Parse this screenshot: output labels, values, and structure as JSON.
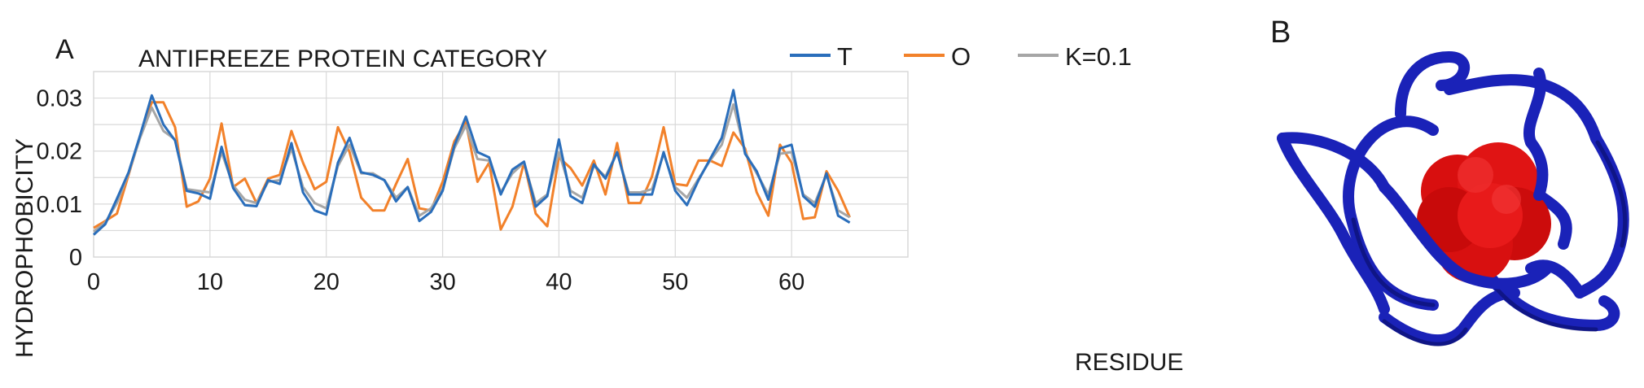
{
  "panel_a": {
    "label": "A",
    "chart_data": {
      "type": "line",
      "title": "ANTIFREEZE PROTEIN CATEGORY",
      "xlabel": "RESIDUE",
      "ylabel": "HYDROPHOBICITY",
      "xlim": [
        0,
        70
      ],
      "ylim": [
        0,
        0.035
      ],
      "xticks": [
        0,
        10,
        20,
        30,
        40,
        50,
        60
      ],
      "yticks": [
        0,
        0.01,
        0.02,
        0.03
      ],
      "ytick_labels": [
        "0",
        "0.01",
        "0.02",
        "0.03"
      ],
      "grid": true,
      "legend_position": "top-right",
      "x": [
        0,
        1,
        2,
        3,
        4,
        5,
        6,
        7,
        8,
        9,
        10,
        11,
        12,
        13,
        14,
        15,
        16,
        17,
        18,
        19,
        20,
        21,
        22,
        23,
        24,
        25,
        26,
        27,
        28,
        29,
        30,
        31,
        32,
        33,
        34,
        35,
        36,
        37,
        38,
        39,
        40,
        41,
        42,
        43,
        44,
        45,
        46,
        47,
        48,
        49,
        50,
        51,
        52,
        53,
        54,
        55,
        56,
        57,
        58,
        59,
        60,
        61,
        62,
        63,
        64,
        65
      ],
      "series": [
        {
          "name": "T",
          "color": "#2a6ebb",
          "values": [
            0.0042,
            0.0062,
            0.011,
            0.016,
            0.023,
            0.0305,
            0.025,
            0.022,
            0.0125,
            0.012,
            0.011,
            0.0208,
            0.013,
            0.0098,
            0.0096,
            0.0145,
            0.0138,
            0.0215,
            0.0122,
            0.0088,
            0.008,
            0.0178,
            0.0225,
            0.016,
            0.0155,
            0.0145,
            0.0105,
            0.0132,
            0.0068,
            0.0085,
            0.0125,
            0.021,
            0.0265,
            0.0198,
            0.0188,
            0.0118,
            0.0165,
            0.018,
            0.0095,
            0.0115,
            0.0222,
            0.0115,
            0.0102,
            0.0175,
            0.0148,
            0.0198,
            0.0118,
            0.0118,
            0.0118,
            0.0198,
            0.0125,
            0.0098,
            0.0145,
            0.0185,
            0.0225,
            0.0315,
            0.0195,
            0.0162,
            0.0108,
            0.0205,
            0.0212,
            0.0115,
            0.0095,
            0.0158,
            0.0078,
            0.0065
          ]
        },
        {
          "name": "O",
          "color": "#f2812a",
          "values": [
            0.0055,
            0.0068,
            0.0082,
            0.0155,
            0.0228,
            0.0292,
            0.0292,
            0.0245,
            0.0095,
            0.0105,
            0.0148,
            0.0252,
            0.0132,
            0.0148,
            0.0102,
            0.0148,
            0.0155,
            0.0238,
            0.0178,
            0.0128,
            0.0142,
            0.0245,
            0.0198,
            0.0112,
            0.0088,
            0.0088,
            0.0138,
            0.0185,
            0.0092,
            0.0088,
            0.0142,
            0.0218,
            0.0255,
            0.0142,
            0.0178,
            0.0052,
            0.0095,
            0.0178,
            0.0082,
            0.0058,
            0.0188,
            0.0168,
            0.0135,
            0.0182,
            0.0118,
            0.0215,
            0.0102,
            0.0102,
            0.0152,
            0.0245,
            0.0138,
            0.0135,
            0.0182,
            0.0182,
            0.0172,
            0.0235,
            0.0205,
            0.0122,
            0.0078,
            0.0212,
            0.0178,
            0.0072,
            0.0075,
            0.0162,
            0.0125,
            0.0075
          ]
        },
        {
          "name": "K=0.1",
          "color": "#a6a6a6",
          "values": [
            0.0048,
            0.0065,
            0.0102,
            0.0158,
            0.0225,
            0.0282,
            0.0238,
            0.0222,
            0.0128,
            0.0125,
            0.0122,
            0.0198,
            0.0135,
            0.0108,
            0.0102,
            0.0142,
            0.0145,
            0.0205,
            0.0132,
            0.0102,
            0.0092,
            0.0172,
            0.0212,
            0.0158,
            0.0158,
            0.0145,
            0.0112,
            0.0132,
            0.0078,
            0.0092,
            0.0128,
            0.0205,
            0.0248,
            0.0185,
            0.0182,
            0.0122,
            0.0158,
            0.0178,
            0.0102,
            0.0118,
            0.0198,
            0.0125,
            0.0112,
            0.0172,
            0.0152,
            0.0198,
            0.0122,
            0.0122,
            0.0128,
            0.0195,
            0.0132,
            0.0112,
            0.0148,
            0.0182,
            0.0212,
            0.0288,
            0.0198,
            0.0158,
            0.0118,
            0.0195,
            0.0198,
            0.0118,
            0.0102,
            0.0155,
            0.0088,
            0.0075
          ]
        }
      ]
    }
  },
  "panel_b": {
    "label": "B",
    "image_description_icon": "protein-ribbon-structure"
  },
  "colors": {
    "ribbon": "#1a22b8",
    "ribbon_dark": "#0b1070",
    "surface": "#e01010",
    "grid": "#d9d9d9"
  }
}
